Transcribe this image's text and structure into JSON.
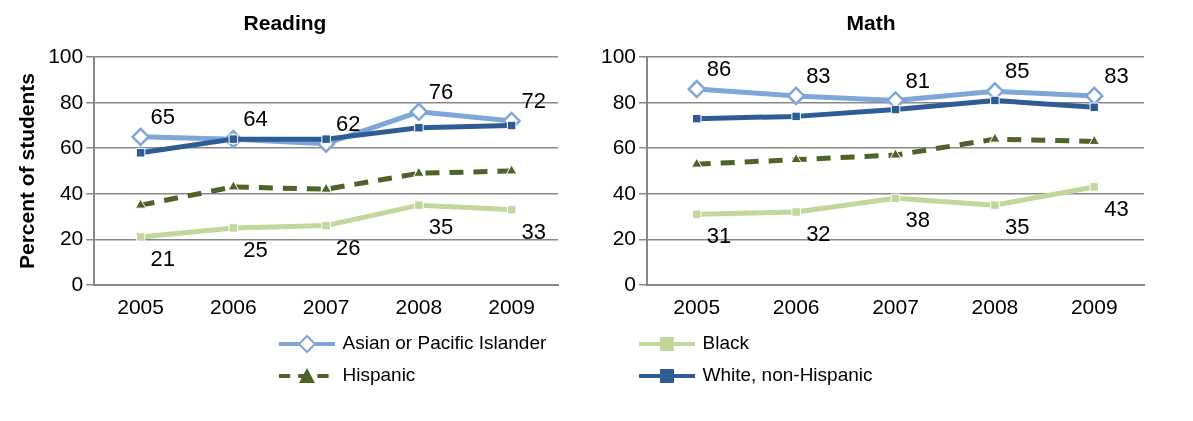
{
  "chart_data": [
    {
      "type": "line",
      "title": "Reading",
      "ylabel": "Percent of students",
      "categories": [
        "2005",
        "2006",
        "2007",
        "2008",
        "2009"
      ],
      "ylim": [
        0,
        100
      ],
      "yticks": [
        0,
        20,
        40,
        60,
        80,
        100
      ],
      "grid": "y",
      "legend": "bottom",
      "series": [
        {
          "name": "Asian or Pacific Islander",
          "color": "#7ea6d8",
          "marker": "diamond",
          "values": [
            65,
            64,
            62,
            76,
            72
          ],
          "value_labels": [
            "65",
            "64",
            "62",
            "76",
            "72"
          ]
        },
        {
          "name": "Black",
          "color": "#c3d69b",
          "marker": "square",
          "values": [
            21,
            25,
            26,
            35,
            33
          ],
          "value_labels": [
            "21",
            "25",
            "26",
            "35",
            "33"
          ]
        },
        {
          "name": "Hispanic",
          "color": "#4f6228",
          "marker": "triangle",
          "line_style": "dashed",
          "values": [
            35,
            43,
            42,
            49,
            50
          ]
        },
        {
          "name": "White, non-Hispanic",
          "color": "#2f5c95",
          "marker": "square",
          "values": [
            58,
            64,
            64,
            69,
            70
          ]
        }
      ]
    },
    {
      "type": "line",
      "title": "Math",
      "categories": [
        "2005",
        "2006",
        "2007",
        "2008",
        "2009"
      ],
      "ylim": [
        0,
        100
      ],
      "yticks": [
        0,
        20,
        40,
        60,
        80,
        100
      ],
      "grid": "y",
      "legend": "bottom",
      "series": [
        {
          "name": "Asian or Pacific Islander",
          "color": "#7ea6d8",
          "marker": "diamond",
          "values": [
            86,
            83,
            81,
            85,
            83
          ],
          "value_labels": [
            "86",
            "83",
            "81",
            "85",
            "83"
          ]
        },
        {
          "name": "Black",
          "color": "#c3d69b",
          "marker": "square",
          "values": [
            31,
            32,
            38,
            35,
            43
          ],
          "value_labels": [
            "31",
            "32",
            "38",
            "35",
            "43"
          ]
        },
        {
          "name": "Hispanic",
          "color": "#4f6228",
          "marker": "triangle",
          "line_style": "dashed",
          "values": [
            53,
            55,
            57,
            64,
            63
          ]
        },
        {
          "name": "White, non-Hispanic",
          "color": "#2f5c95",
          "marker": "square",
          "values": [
            73,
            74,
            77,
            81,
            78
          ]
        }
      ]
    }
  ]
}
